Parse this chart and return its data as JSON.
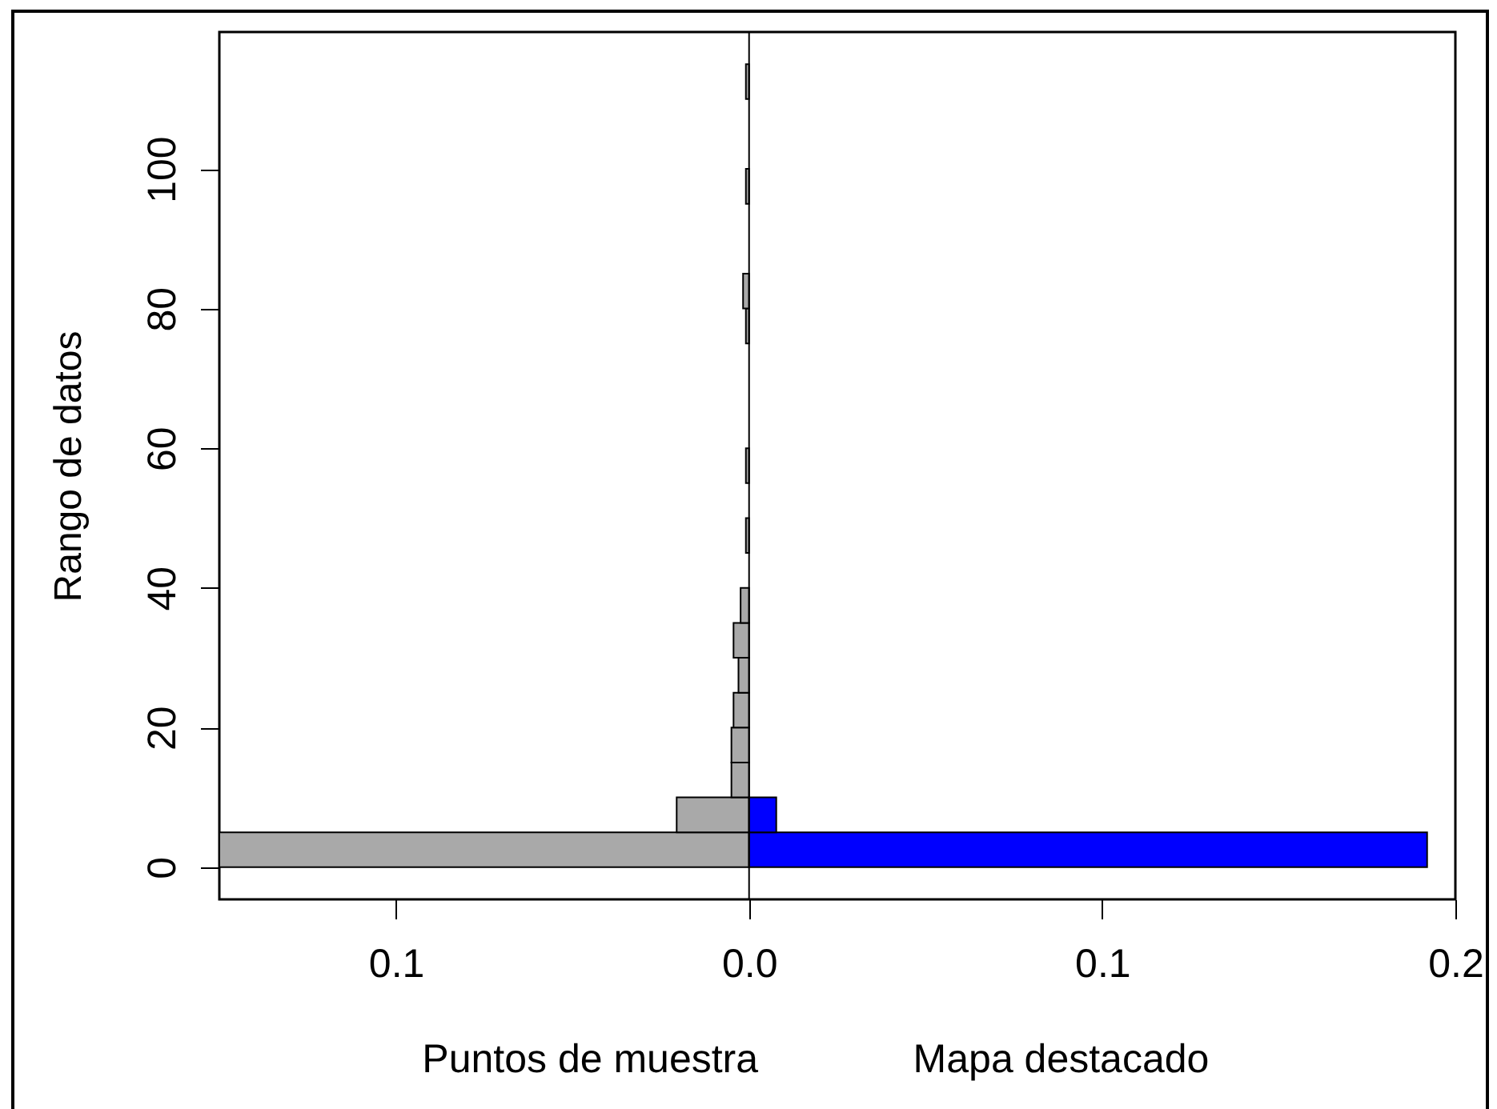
{
  "chart_data": {
    "type": "histogram",
    "orientation": "horizontal",
    "ylabel": "Rango de datos",
    "bins": [
      0,
      5,
      10,
      15,
      20,
      25,
      30,
      35,
      40,
      45,
      50,
      55,
      60,
      65,
      70,
      75,
      80,
      85,
      90,
      95,
      100,
      105,
      110,
      115
    ],
    "series": [
      {
        "color": "#a9a9a9",
        "values": [
          -0.15,
          -0.0205,
          -0.005,
          -0.005,
          -0.0044,
          -0.003,
          -0.0044,
          -0.0024,
          null,
          -0.0009,
          null,
          -0.0009,
          null,
          null,
          null,
          -0.0009,
          -0.0017,
          null,
          null,
          -0.0009,
          null,
          null,
          -0.0009
        ]
      },
      {
        "color": "#0000ff",
        "values": [
          0.192,
          0.0077,
          null,
          null,
          null,
          null,
          null,
          null,
          null,
          null,
          null,
          null,
          null,
          null,
          null,
          null,
          null,
          null,
          null,
          null,
          null,
          null,
          null
        ]
      }
    ],
    "xlim": [
      -0.15,
      0.2
    ],
    "xticks": [
      {
        "value": -0.1,
        "label": "0.1"
      },
      {
        "value": 0,
        "label": "0.0"
      },
      0.1,
      0.2
    ],
    "ylim": [
      -4.6,
      119.6
    ],
    "yticks": [
      0,
      20,
      40,
      60,
      80,
      100
    ],
    "ref_lines": [
      {
        "axis": "x",
        "value": 0,
        "color": "#000000"
      }
    ],
    "annotations": [
      "Puntos de muestra",
      "Mapa destacado"
    ]
  }
}
